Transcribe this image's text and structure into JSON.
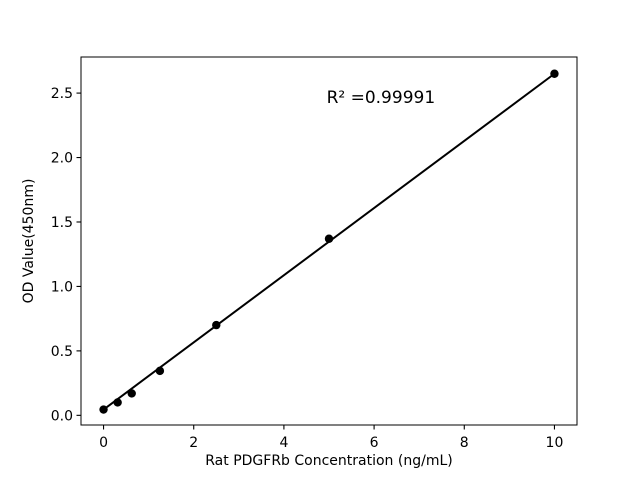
{
  "figure": {
    "background": "#ffffff",
    "foreground": "#000000"
  },
  "chart_data": {
    "type": "scatter",
    "title": "",
    "xlabel": "Rat PDGFRb Concentration (ng/mL)",
    "ylabel": "OD Value(450nm)",
    "annotation": {
      "text": "R² =0.99991",
      "x": 6.15,
      "y": 2.47
    },
    "x": [
      0,
      0.3125,
      0.625,
      1.25,
      2.5,
      5,
      10
    ],
    "y": [
      0.045,
      0.1,
      0.17,
      0.345,
      0.7,
      1.37,
      2.65
    ],
    "fit_line": {
      "x1": 0,
      "y1": 0.045,
      "x2": 10,
      "y2": 2.65
    },
    "xticks": [
      0,
      2,
      4,
      6,
      8,
      10
    ],
    "xtick_labels": [
      "0",
      "2",
      "4",
      "6",
      "8",
      "10"
    ],
    "yticks": [
      0.0,
      0.5,
      1.0,
      1.5,
      2.0,
      2.5
    ],
    "ytick_labels": [
      "0.0",
      "0.5",
      "1.0",
      "1.5",
      "2.0",
      "2.5"
    ],
    "xlim": [
      -0.5,
      10.5
    ],
    "ylim": [
      -0.075,
      2.78
    ],
    "grid": false,
    "legend": null,
    "marker_color": "#000000",
    "line_color": "#000000",
    "axis_color": "#000000"
  }
}
